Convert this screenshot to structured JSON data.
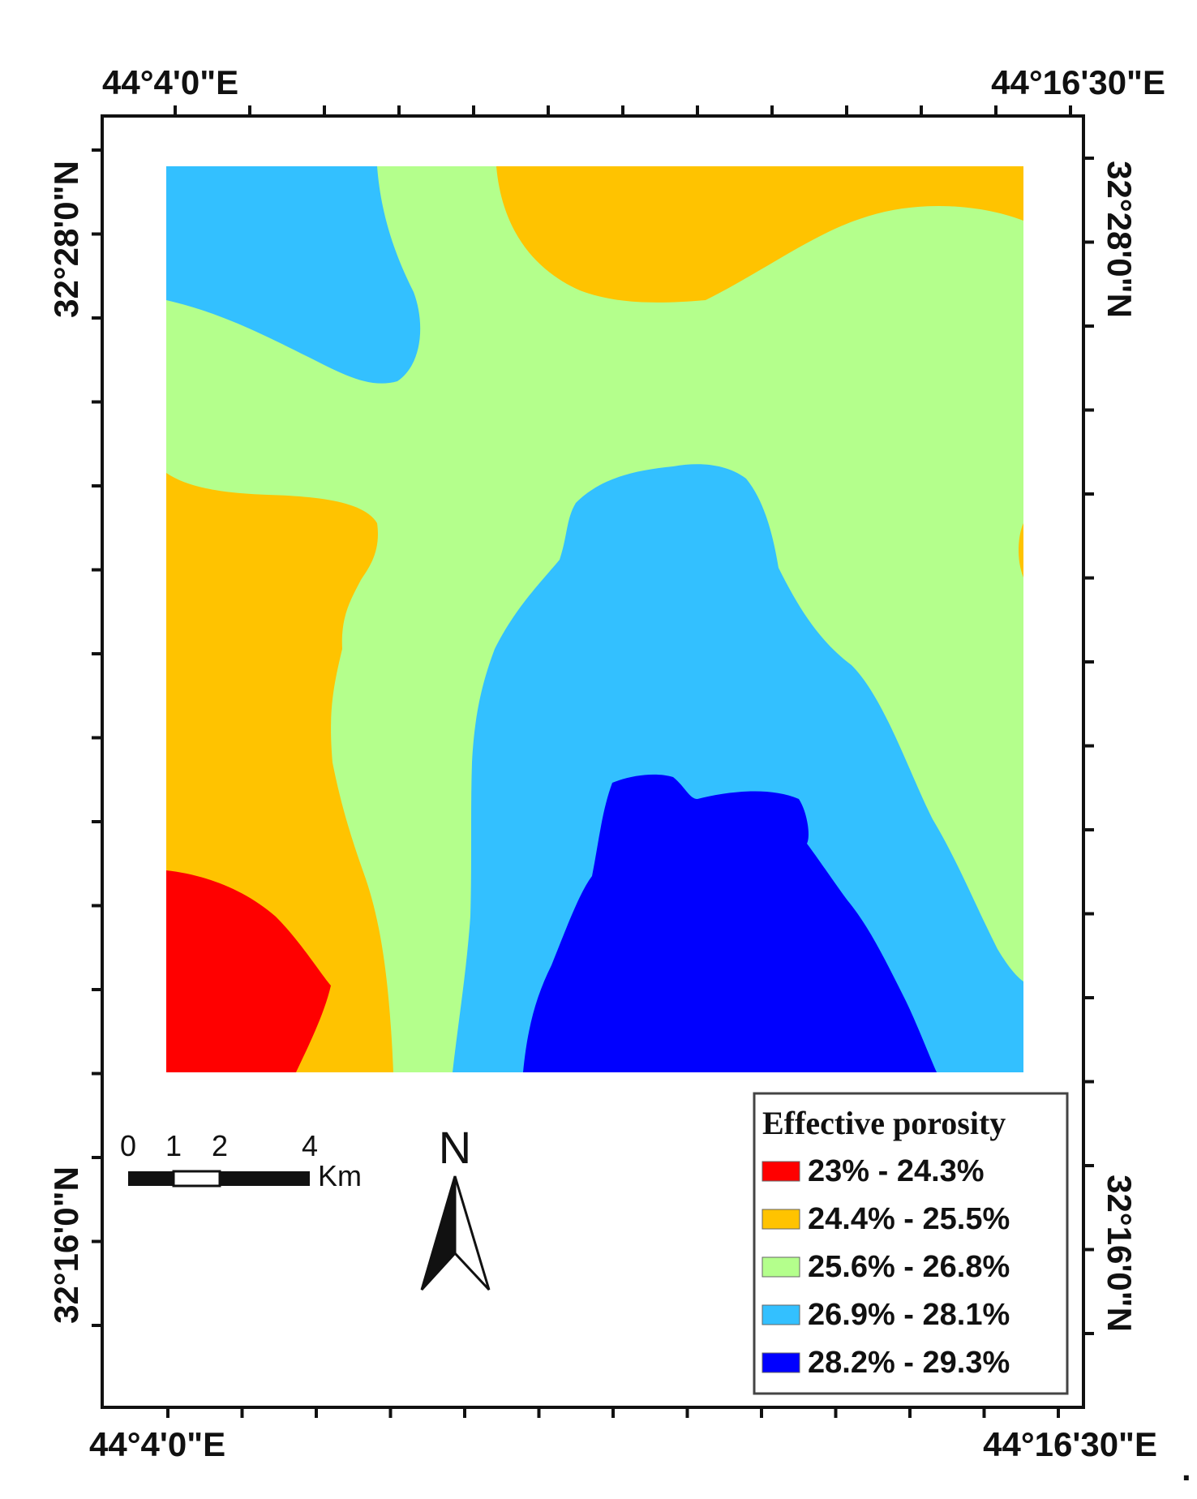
{
  "coordinates": {
    "top_left": "44°4'0\"E",
    "top_right": "44°16'30\"E",
    "bottom_left": "44°4'0\"E",
    "bottom_right": "44°16'30\"E",
    "left_upper": "32°28'0\"N",
    "left_lower": "32°16'0\"N",
    "right_upper": "32°28'0\"N",
    "right_lower": "32°16'0\"N"
  },
  "scale_bar": {
    "labels": [
      "0",
      "1",
      "2",
      "4"
    ],
    "unit": "Km"
  },
  "north_arrow": {
    "label": "N"
  },
  "legend": {
    "title": "Effective porosity",
    "items": [
      {
        "label": "23% - 24.3%",
        "color": "#ff0000"
      },
      {
        "label": "24.4% - 25.5%",
        "color": "#ffc300"
      },
      {
        "label": "25.6% - 26.8%",
        "color": "#b4ff8c"
      },
      {
        "label": "26.9% - 28.1%",
        "color": "#33c0ff"
      },
      {
        "label": "28.2% - 29.3%",
        "color": "#0000ff"
      }
    ]
  },
  "trailing_mark": "."
}
